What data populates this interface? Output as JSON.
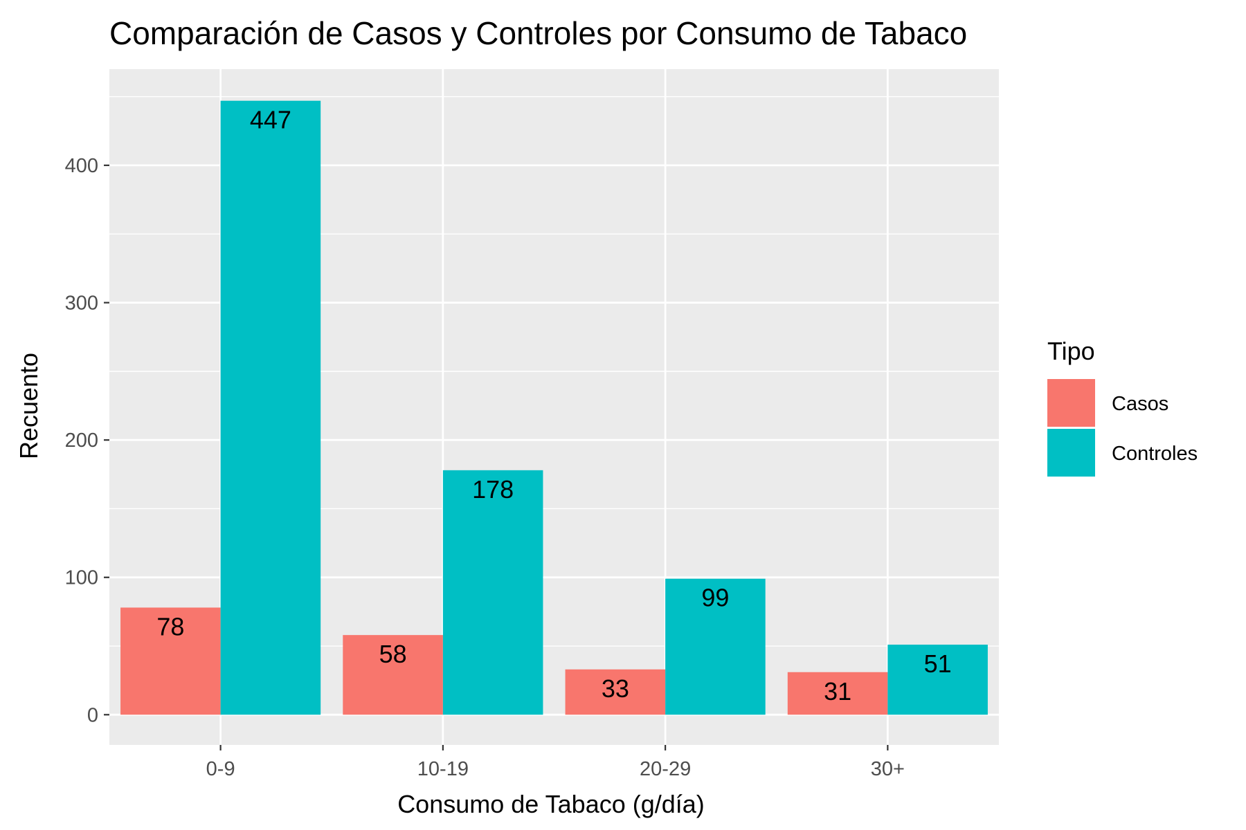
{
  "chart_data": {
    "type": "bar",
    "title": "Comparación de Casos y Controles por Consumo de Tabaco",
    "xlabel": "Consumo de Tabaco (g/día)",
    "ylabel": "Recuento",
    "categories": [
      "0-9",
      "10-19",
      "20-29",
      "30+"
    ],
    "series": [
      {
        "name": "Casos",
        "color": "#F8766D",
        "values": [
          78,
          58,
          33,
          31
        ]
      },
      {
        "name": "Controles",
        "color": "#00BFC4",
        "values": [
          447,
          178,
          99,
          51
        ]
      }
    ],
    "yticks": [
      0,
      100,
      200,
      300,
      400
    ],
    "ylim": [
      -22,
      470
    ],
    "grid": true,
    "legend": {
      "title": "Tipo",
      "position": "right"
    },
    "panel_background": "#EBEBEB",
    "grid_color": "#FFFFFF"
  }
}
